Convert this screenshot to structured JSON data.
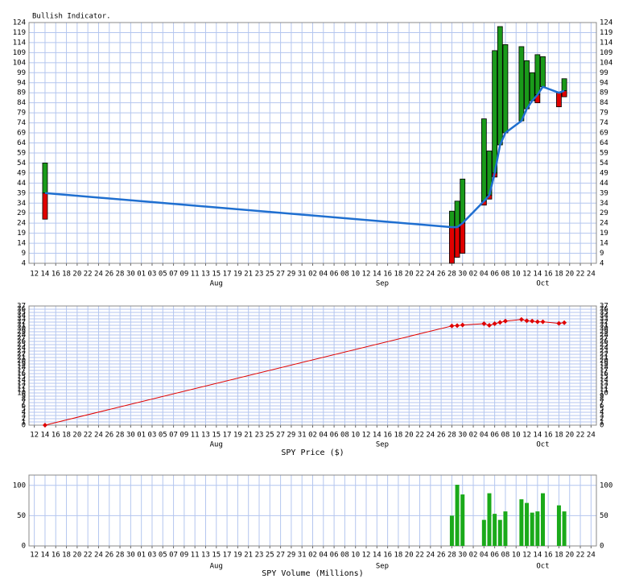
{
  "chart_data": [
    {
      "type": "range-bar",
      "title": "Bullish Indicator.",
      "x": [
        "07-14",
        "09-28",
        "09-29",
        "09-30",
        "10-04",
        "10-05",
        "10-06",
        "10-07",
        "10-08",
        "10-11",
        "10-12",
        "10-13",
        "10-14",
        "10-15",
        "10-18",
        "10-19"
      ],
      "average": [
        39,
        22,
        22,
        24,
        35,
        38,
        49,
        63,
        69,
        75,
        81,
        85,
        88,
        92,
        89,
        90
      ],
      "upper": [
        54,
        30,
        35,
        46,
        76,
        60,
        110,
        122,
        113,
        112,
        105,
        99,
        108,
        107,
        null,
        96
      ],
      "lower": [
        26,
        4,
        7,
        9,
        33,
        36,
        47,
        null,
        null,
        75,
        null,
        null,
        84,
        null,
        82,
        87
      ],
      "line_color": "#1f6fd0",
      "up_color": "#1a9a1a",
      "down_color": "#e00000",
      "ylim": [
        4,
        124
      ],
      "yticks": [
        4,
        9,
        14,
        19,
        24,
        29,
        34,
        39,
        44,
        49,
        54,
        59,
        64,
        69,
        74,
        79,
        84,
        89,
        94,
        99,
        104,
        109,
        114,
        119,
        124
      ],
      "xlim": [
        "07-11",
        "10-25"
      ],
      "xticks": [
        {
          "value": "07-12",
          "label": "12"
        },
        {
          "value": "07-14",
          "label": "14"
        },
        {
          "value": "07-16",
          "label": "16"
        },
        {
          "value": "07-18",
          "label": "18"
        },
        {
          "value": "07-20",
          "label": "20"
        },
        {
          "value": "07-22",
          "label": "22"
        },
        {
          "value": "07-24",
          "label": "24"
        },
        {
          "value": "07-26",
          "label": "26"
        },
        {
          "value": "07-28",
          "label": "28"
        },
        {
          "value": "07-30",
          "label": "30"
        },
        {
          "value": "08-01",
          "label": "01"
        },
        {
          "value": "08-03",
          "label": "03"
        },
        {
          "value": "08-05",
          "label": "05"
        },
        {
          "value": "08-07",
          "label": "07"
        },
        {
          "value": "08-09",
          "label": "09"
        },
        {
          "value": "08-11",
          "label": "11"
        },
        {
          "value": "08-13",
          "label": "13"
        },
        {
          "value": "08-15",
          "label": "15"
        },
        {
          "value": "08-17",
          "label": "17"
        },
        {
          "value": "08-19",
          "label": "19"
        },
        {
          "value": "08-21",
          "label": "21"
        },
        {
          "value": "08-23",
          "label": "23"
        },
        {
          "value": "08-25",
          "label": "25"
        },
        {
          "value": "08-27",
          "label": "27"
        },
        {
          "value": "08-29",
          "label": "29"
        },
        {
          "value": "08-31",
          "label": "31"
        },
        {
          "value": "09-02",
          "label": "02"
        },
        {
          "value": "09-04",
          "label": "04"
        },
        {
          "value": "09-06",
          "label": "06"
        },
        {
          "value": "09-08",
          "label": "08"
        },
        {
          "value": "09-10",
          "label": "10"
        },
        {
          "value": "09-12",
          "label": "12"
        },
        {
          "value": "09-14",
          "label": "14"
        },
        {
          "value": "09-16",
          "label": "16"
        },
        {
          "value": "09-18",
          "label": "18"
        },
        {
          "value": "09-20",
          "label": "20"
        },
        {
          "value": "09-22",
          "label": "22"
        },
        {
          "value": "09-24",
          "label": "24"
        },
        {
          "value": "09-26",
          "label": "26"
        },
        {
          "value": "09-28",
          "label": "28"
        },
        {
          "value": "09-30",
          "label": "30"
        },
        {
          "value": "10-02",
          "label": "02"
        },
        {
          "value": "10-04",
          "label": "04"
        },
        {
          "value": "10-06",
          "label": "06"
        },
        {
          "value": "10-08",
          "label": "08"
        },
        {
          "value": "10-10",
          "label": "10"
        },
        {
          "value": "10-12",
          "label": "12"
        },
        {
          "value": "10-14",
          "label": "14"
        },
        {
          "value": "10-16",
          "label": "16"
        },
        {
          "value": "10-18",
          "label": "18"
        },
        {
          "value": "10-20",
          "label": "20"
        },
        {
          "value": "10-22",
          "label": "22"
        },
        {
          "value": "10-24",
          "label": "24"
        }
      ],
      "months": [
        {
          "value": "08-15",
          "label": "Aug"
        },
        {
          "value": "09-15",
          "label": "Sep"
        },
        {
          "value": "10-15",
          "label": "Oct"
        }
      ],
      "grid": true
    },
    {
      "type": "line",
      "xlabel": "SPY Price ($)",
      "x": [
        "07-14",
        "09-28",
        "09-29",
        "09-30",
        "10-04",
        "10-05",
        "10-06",
        "10-07",
        "10-08",
        "10-11",
        "10-12",
        "10-13",
        "10-14",
        "10-15",
        "10-18",
        "10-19"
      ],
      "values": [
        0,
        30.8,
        30.9,
        31.1,
        31.5,
        31.0,
        31.5,
        31.9,
        32.3,
        32.8,
        32.4,
        32.3,
        32.1,
        32.1,
        31.6,
        31.8
      ],
      "color": "#e00000",
      "ylim": [
        0,
        37
      ],
      "yticks": [
        0,
        1,
        2,
        3,
        4,
        5,
        6,
        7,
        8,
        9,
        10,
        11,
        12,
        13,
        14,
        15,
        16,
        17,
        18,
        19,
        20,
        21,
        22,
        23,
        24,
        25,
        26,
        27,
        28,
        29,
        30,
        31,
        32,
        33,
        34,
        35,
        36,
        37
      ],
      "xlim": [
        "07-11",
        "10-25"
      ],
      "xticks": [
        {
          "value": "07-12",
          "label": "12"
        },
        {
          "value": "07-14",
          "label": "14"
        },
        {
          "value": "07-16",
          "label": "16"
        },
        {
          "value": "07-18",
          "label": "18"
        },
        {
          "value": "07-20",
          "label": "20"
        },
        {
          "value": "07-22",
          "label": "22"
        },
        {
          "value": "07-24",
          "label": "24"
        },
        {
          "value": "07-26",
          "label": "26"
        },
        {
          "value": "07-28",
          "label": "28"
        },
        {
          "value": "07-30",
          "label": "30"
        },
        {
          "value": "08-01",
          "label": "01"
        },
        {
          "value": "08-03",
          "label": "03"
        },
        {
          "value": "08-05",
          "label": "05"
        },
        {
          "value": "08-07",
          "label": "07"
        },
        {
          "value": "08-09",
          "label": "09"
        },
        {
          "value": "08-11",
          "label": "11"
        },
        {
          "value": "08-13",
          "label": "13"
        },
        {
          "value": "08-15",
          "label": "15"
        },
        {
          "value": "08-17",
          "label": "17"
        },
        {
          "value": "08-19",
          "label": "19"
        },
        {
          "value": "08-21",
          "label": "21"
        },
        {
          "value": "08-23",
          "label": "23"
        },
        {
          "value": "08-25",
          "label": "25"
        },
        {
          "value": "08-27",
          "label": "27"
        },
        {
          "value": "08-29",
          "label": "29"
        },
        {
          "value": "08-31",
          "label": "31"
        },
        {
          "value": "09-02",
          "label": "02"
        },
        {
          "value": "09-04",
          "label": "04"
        },
        {
          "value": "09-06",
          "label": "06"
        },
        {
          "value": "09-08",
          "label": "08"
        },
        {
          "value": "09-10",
          "label": "10"
        },
        {
          "value": "09-12",
          "label": "12"
        },
        {
          "value": "09-14",
          "label": "14"
        },
        {
          "value": "09-16",
          "label": "16"
        },
        {
          "value": "09-18",
          "label": "18"
        },
        {
          "value": "09-20",
          "label": "20"
        },
        {
          "value": "09-22",
          "label": "22"
        },
        {
          "value": "09-24",
          "label": "24"
        },
        {
          "value": "09-26",
          "label": "26"
        },
        {
          "value": "09-28",
          "label": "28"
        },
        {
          "value": "09-30",
          "label": "30"
        },
        {
          "value": "10-02",
          "label": "02"
        },
        {
          "value": "10-04",
          "label": "04"
        },
        {
          "value": "10-06",
          "label": "06"
        },
        {
          "value": "10-08",
          "label": "08"
        },
        {
          "value": "10-10",
          "label": "10"
        },
        {
          "value": "10-12",
          "label": "12"
        },
        {
          "value": "10-14",
          "label": "14"
        },
        {
          "value": "10-16",
          "label": "16"
        },
        {
          "value": "10-18",
          "label": "18"
        },
        {
          "value": "10-20",
          "label": "20"
        },
        {
          "value": "10-22",
          "label": "22"
        },
        {
          "value": "10-24",
          "label": "24"
        }
      ],
      "months": [
        {
          "value": "08-15",
          "label": "Aug"
        },
        {
          "value": "09-15",
          "label": "Sep"
        },
        {
          "value": "10-15",
          "label": "Oct"
        }
      ],
      "grid": true
    },
    {
      "type": "bar",
      "xlabel": "SPY Volume (Millions)",
      "x": [
        "07-14",
        "09-28",
        "09-29",
        "09-30",
        "10-04",
        "10-05",
        "10-06",
        "10-07",
        "10-08",
        "10-11",
        "10-12",
        "10-13",
        "10-14",
        "10-15",
        "10-18",
        "10-19"
      ],
      "values": [
        null,
        50,
        101,
        85,
        43,
        87,
        53,
        43,
        57,
        77,
        71,
        55,
        57,
        87,
        67,
        57
      ],
      "color": "#1aaa1a",
      "ylim": [
        0,
        117
      ],
      "yticks": [
        0,
        50,
        100
      ],
      "xlim": [
        "07-11",
        "10-25"
      ],
      "xticks": [
        {
          "value": "07-12",
          "label": "12"
        },
        {
          "value": "07-14",
          "label": "14"
        },
        {
          "value": "07-16",
          "label": "16"
        },
        {
          "value": "07-18",
          "label": "18"
        },
        {
          "value": "07-20",
          "label": "20"
        },
        {
          "value": "07-22",
          "label": "22"
        },
        {
          "value": "07-24",
          "label": "24"
        },
        {
          "value": "07-26",
          "label": "26"
        },
        {
          "value": "07-28",
          "label": "28"
        },
        {
          "value": "07-30",
          "label": "30"
        },
        {
          "value": "08-01",
          "label": "01"
        },
        {
          "value": "08-03",
          "label": "03"
        },
        {
          "value": "08-05",
          "label": "05"
        },
        {
          "value": "08-07",
          "label": "07"
        },
        {
          "value": "08-09",
          "label": "09"
        },
        {
          "value": "08-11",
          "label": "11"
        },
        {
          "value": "08-13",
          "label": "13"
        },
        {
          "value": "08-15",
          "label": "15"
        },
        {
          "value": "08-17",
          "label": "17"
        },
        {
          "value": "08-19",
          "label": "19"
        },
        {
          "value": "08-21",
          "label": "21"
        },
        {
          "value": "08-23",
          "label": "23"
        },
        {
          "value": "08-25",
          "label": "25"
        },
        {
          "value": "08-27",
          "label": "27"
        },
        {
          "value": "08-29",
          "label": "29"
        },
        {
          "value": "08-31",
          "label": "31"
        },
        {
          "value": "09-02",
          "label": "02"
        },
        {
          "value": "09-04",
          "label": "04"
        },
        {
          "value": "09-06",
          "label": "06"
        },
        {
          "value": "09-08",
          "label": "08"
        },
        {
          "value": "09-10",
          "label": "10"
        },
        {
          "value": "09-12",
          "label": "12"
        },
        {
          "value": "09-14",
          "label": "14"
        },
        {
          "value": "09-16",
          "label": "16"
        },
        {
          "value": "09-18",
          "label": "18"
        },
        {
          "value": "09-20",
          "label": "20"
        },
        {
          "value": "09-22",
          "label": "22"
        },
        {
          "value": "09-24",
          "label": "24"
        },
        {
          "value": "09-26",
          "label": "26"
        },
        {
          "value": "09-28",
          "label": "28"
        },
        {
          "value": "09-30",
          "label": "30"
        },
        {
          "value": "10-02",
          "label": "02"
        },
        {
          "value": "10-04",
          "label": "04"
        },
        {
          "value": "10-06",
          "label": "06"
        },
        {
          "value": "10-08",
          "label": "08"
        },
        {
          "value": "10-10",
          "label": "10"
        },
        {
          "value": "10-12",
          "label": "12"
        },
        {
          "value": "10-14",
          "label": "14"
        },
        {
          "value": "10-16",
          "label": "16"
        },
        {
          "value": "10-18",
          "label": "18"
        },
        {
          "value": "10-20",
          "label": "20"
        },
        {
          "value": "10-22",
          "label": "22"
        },
        {
          "value": "10-24",
          "label": "24"
        }
      ],
      "months": [
        {
          "value": "08-15",
          "label": "Aug"
        },
        {
          "value": "09-15",
          "label": "Sep"
        },
        {
          "value": "10-15",
          "label": "Oct"
        }
      ],
      "grid": true
    }
  ]
}
